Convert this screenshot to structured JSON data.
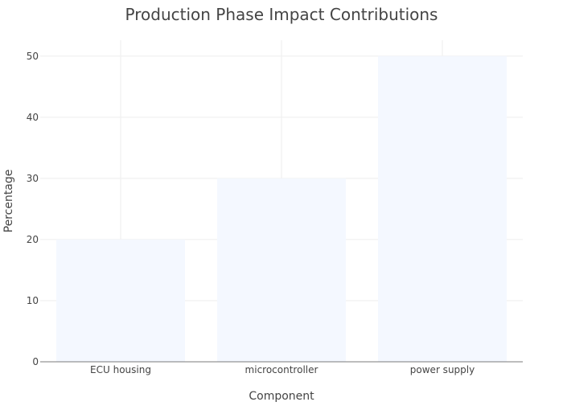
{
  "chart_data": {
    "type": "bar",
    "title": "Production Phase Impact Contributions",
    "xlabel": "Component",
    "ylabel": "Percentage",
    "categories": [
      "ECU housing",
      "microcontroller",
      "power supply"
    ],
    "values": [
      20,
      30,
      50
    ],
    "ylim": [
      0,
      52.6
    ],
    "yticks": [
      0,
      10,
      20,
      30,
      40,
      50
    ],
    "grid": true,
    "legend": "none",
    "bar_color": "#f4f8ff",
    "gridline_color": "#eeeeee",
    "axis_line_color": "#444444",
    "text_color": "#444444"
  }
}
